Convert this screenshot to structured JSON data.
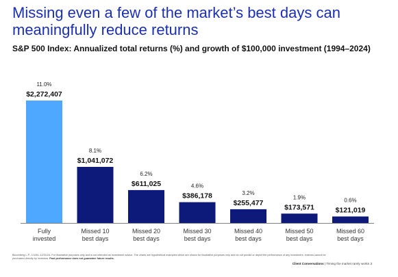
{
  "headline": "Missing even a few of the market’s best days can meaningfully reduce returns",
  "chart_data": {
    "type": "bar",
    "title": "S&P 500 Index: Annualized total returns (%) and growth of $100,000 investment (1994–2024)",
    "categories": [
      [
        "Fully",
        "invested"
      ],
      [
        "Missed 10",
        "best days"
      ],
      [
        "Missed 20",
        "best days"
      ],
      [
        "Missed 30",
        "best days"
      ],
      [
        "Missed 40",
        "best days"
      ],
      [
        "Missed 50",
        "best days"
      ],
      [
        "Missed 60",
        "best days"
      ]
    ],
    "values": [
      2272407,
      1041072,
      611025,
      386178,
      255477,
      173571,
      121019
    ],
    "value_labels": [
      "$2,272,407",
      "$1,041,072",
      "$611,025",
      "$386,178",
      "$255,477",
      "$173,571",
      "$121,019"
    ],
    "percent_labels": [
      "11.0%",
      "8.1%",
      "6.2%",
      "4.6%",
      "3.2%",
      "1.9%",
      "0.6%"
    ],
    "colors": {
      "highlight": "#4fa8ff",
      "bar": "#0d1a7a",
      "baseline": "#555555"
    },
    "xlabel": "",
    "ylabel": "",
    "ylim": [
      0,
      2272407
    ],
    "grid": false,
    "legend": "none"
  },
  "footnote": {
    "text": "Bloomberg L.P., 1/1/94–12/31/24. For illustrative purposes only and is not intended as investment advice. The charts are hypothetical examples which are shown for illustrative purposes only and do not predict or depict the performance of any investment. Indexes cannot be purchased directly by investors.",
    "bold": "Past performance does not guarantee future results."
  },
  "footer": {
    "brand": "Client Conversations",
    "separator": "|",
    "topic": "Timing the market rarely works",
    "page": "3"
  }
}
